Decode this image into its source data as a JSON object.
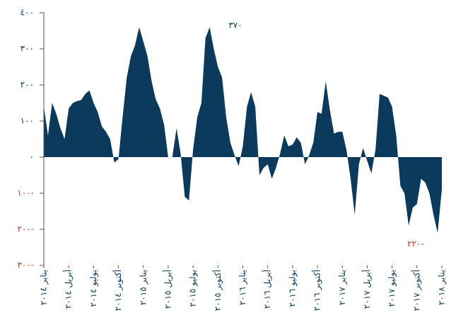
{
  "chart_data": {
    "type": "area",
    "color": "#0b3a5c",
    "negative_label_color": "#c0392b",
    "annotations": [
      "٣٧٠",
      "٢٢٠-"
    ],
    "ylim": [
      -300,
      400
    ],
    "yticks": [
      {
        "value": 400,
        "label": "٤٠٠"
      },
      {
        "value": 300,
        "label": "٣٠٠"
      },
      {
        "value": 200,
        "label": "٢٠٠"
      },
      {
        "value": 100,
        "label": "١٠٠"
      },
      {
        "value": 0,
        "label": "٠"
      },
      {
        "value": -100,
        "label": "١٠٠-"
      },
      {
        "value": -200,
        "label": "٢٠٠-"
      },
      {
        "value": -300,
        "label": "٣٠٠-"
      }
    ],
    "categories": [
      "يناير ٢٠١٤",
      null,
      null,
      null,
      null,
      null,
      "أبريل ٢٠١٤",
      null,
      null,
      null,
      null,
      null,
      "يوليو ٢٠١٤",
      null,
      null,
      null,
      null,
      null,
      "أكتوبر ٢٠١٤",
      null,
      null,
      null,
      null,
      null,
      "يناير ٢٠١٥",
      null,
      null,
      null,
      null,
      null,
      "أبريل ٢٠١٥",
      null,
      null,
      null,
      null,
      null,
      "يوليو ٢٠١٥",
      null,
      null,
      null,
      null,
      null,
      "أكتوبر ٢٠١٥",
      null,
      null,
      null,
      null,
      null,
      "يناير ٢٠١٦",
      null,
      null,
      null,
      null,
      null,
      "أبريل ٢٠١٦",
      null,
      null,
      null,
      null,
      null,
      "يوليو ٢٠١٦",
      null,
      null,
      null,
      null,
      null,
      "أكتوبر ٢٠١٦",
      null,
      null,
      null,
      null,
      null,
      "يناير ٢٠١٧",
      null,
      null,
      null,
      null,
      null,
      "أبريل ٢٠١٧",
      null,
      null,
      null,
      null,
      null,
      "يوليو ٢٠١٧",
      null,
      null,
      null,
      null,
      null,
      "أكتوبر ٢٠١٧",
      null,
      null,
      null,
      null,
      null,
      "يناير ٢٠١٨"
    ],
    "values": [
      140,
      60,
      150,
      120,
      80,
      50,
      135,
      150,
      155,
      158,
      175,
      185,
      150,
      125,
      85,
      70,
      50,
      -15,
      -5,
      110,
      220,
      280,
      310,
      360,
      320,
      280,
      210,
      160,
      135,
      90,
      0,
      0,
      80,
      10,
      -110,
      -120,
      20,
      110,
      150,
      330,
      360,
      300,
      250,
      220,
      110,
      40,
      5,
      -25,
      30,
      140,
      180,
      140,
      -50,
      -30,
      -20,
      -60,
      -30,
      10,
      60,
      30,
      35,
      55,
      40,
      -20,
      5,
      40,
      125,
      120,
      210,
      130,
      65,
      70,
      70,
      20,
      -60,
      -160,
      -20,
      25,
      -10,
      -45,
      20,
      175,
      170,
      165,
      140,
      60,
      -80,
      -100,
      -190,
      -140,
      -130,
      -60,
      -70,
      -100,
      -160,
      -210,
      -90
    ]
  }
}
